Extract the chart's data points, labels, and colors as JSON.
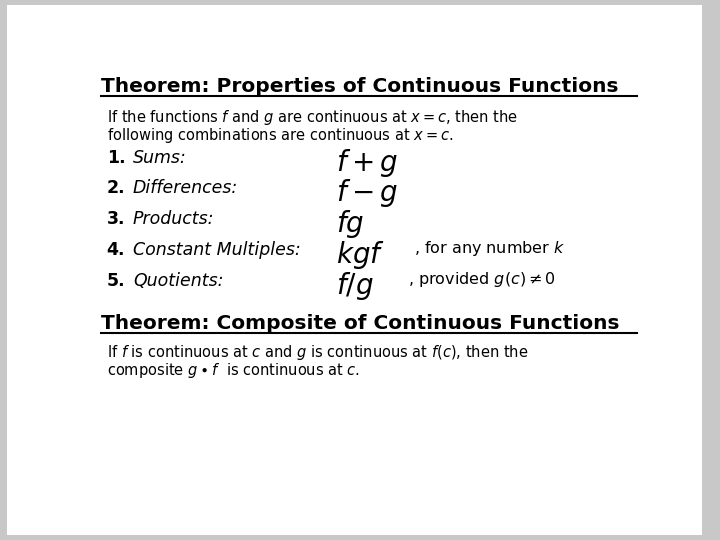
{
  "background_color": "#c8c8c8",
  "slide_bg": "#ffffff",
  "title1": "Theorem: Properties of Continuous Functions",
  "title2": "Theorem: Composite of Continuous Functions",
  "desc1_line1": "If the functions $f$ and $g$ are continuous at $x = c$, then the",
  "desc1_line2": "following combinations are continuous at $x = c$.",
  "desc2_line1": "If $f$ is continuous at $c$ and $g$ is continuous at $f(c)$, then the",
  "desc2_line2": "composite $g \\bullet f$  is continuous at $c$.",
  "text_color": "#000000",
  "title_color": "#000000"
}
